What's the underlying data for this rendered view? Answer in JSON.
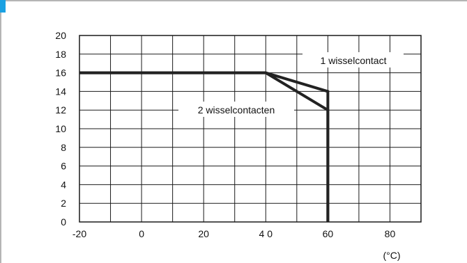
{
  "colors": {
    "accent": "#1ba1e2",
    "frame": "#b5b5b5",
    "grid": "#1a1a1a",
    "curve": "#222222"
  },
  "chart_data": {
    "type": "line",
    "title": "",
    "xlabel": "",
    "ylabel": "",
    "x_unit": "(°C)",
    "xlim": [
      -20,
      90
    ],
    "ylim": [
      0,
      20
    ],
    "grid": true,
    "x_ticks": [
      -20,
      0,
      20,
      40,
      60,
      80
    ],
    "x_tick_labels": [
      "-20",
      "0",
      "20",
      "4 0",
      "60",
      "80"
    ],
    "y_ticks": [
      0,
      2,
      4,
      6,
      8,
      10,
      12,
      14,
      16,
      18,
      20
    ],
    "y_tick_labels": [
      "0",
      "2",
      "4",
      "6",
      "8",
      "10",
      "12",
      "14",
      "16",
      "18",
      "20"
    ],
    "series": [
      {
        "name": "1 wisselcontact",
        "x": [
          -20,
          40,
          60,
          60
        ],
        "y": [
          16,
          16,
          14,
          0
        ]
      },
      {
        "name": "2 wisselcontacten",
        "x": [
          -20,
          40,
          60,
          60
        ],
        "y": [
          16,
          16,
          12,
          0
        ]
      }
    ]
  }
}
